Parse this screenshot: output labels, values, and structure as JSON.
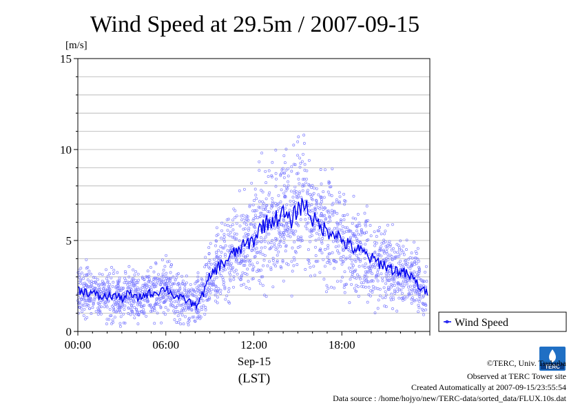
{
  "chart_data": {
    "type": "line+scatter",
    "title": "Wind Speed at 29.5m / 2007-09-15",
    "ylabel": "[m/s]",
    "xlabel": "(LST)",
    "date_label": "Sep-15",
    "ylim": [
      0,
      15
    ],
    "xlim_hours": [
      0,
      24
    ],
    "y_ticks": [
      "0",
      "5",
      "10",
      "15"
    ],
    "x_ticks": [
      "00:00",
      "06:00",
      "12:00",
      "18:00"
    ],
    "grid": "horizontal",
    "legend": {
      "label": "Wind Speed",
      "placement": "right"
    },
    "colors": {
      "line": "#0000ee",
      "scatter": "#8080ff"
    },
    "series": [
      {
        "name": "Wind Speed",
        "style": "line",
        "x_hours": [
          0,
          0.5,
          1,
          1.5,
          2,
          2.5,
          3,
          3.5,
          4,
          4.5,
          5,
          5.5,
          6,
          6.5,
          7,
          7.5,
          8,
          8.5,
          9,
          9.5,
          10,
          10.5,
          11,
          11.5,
          12,
          12.5,
          13,
          13.5,
          14,
          14.5,
          15,
          15.5,
          16,
          16.5,
          17,
          17.5,
          18,
          18.5,
          19,
          19.5,
          20,
          20.5,
          21,
          21.5,
          22,
          22.5,
          23,
          23.5
        ],
        "values": [
          2.3,
          2.2,
          2.1,
          1.9,
          1.9,
          2.0,
          1.8,
          2.1,
          1.8,
          2.0,
          2.1,
          2.2,
          2.4,
          2.0,
          1.8,
          1.7,
          1.4,
          2.0,
          3.0,
          3.5,
          3.8,
          4.2,
          4.5,
          4.8,
          5.0,
          5.8,
          6.0,
          6.2,
          6.5,
          6.0,
          6.8,
          7.0,
          6.2,
          5.8,
          5.5,
          5.5,
          5.0,
          4.7,
          4.5,
          4.3,
          4.0,
          3.8,
          3.6,
          3.4,
          3.3,
          3.1,
          2.8,
          2.2
        ]
      },
      {
        "name": "",
        "style": "scatter",
        "note": "10-second samples scattered around the mean line"
      }
    ]
  },
  "credits": {
    "copyright": "©TERC, Univ. Tsukuba",
    "observed": "Observed at TERC Tower site",
    "created": "Created Automatically at 2007-09-15/23:55:54",
    "source": "Data source : /home/hojyo/new/TERC-data/sorted_data/FLUX.10s.dat"
  },
  "logo_text": "TERC"
}
